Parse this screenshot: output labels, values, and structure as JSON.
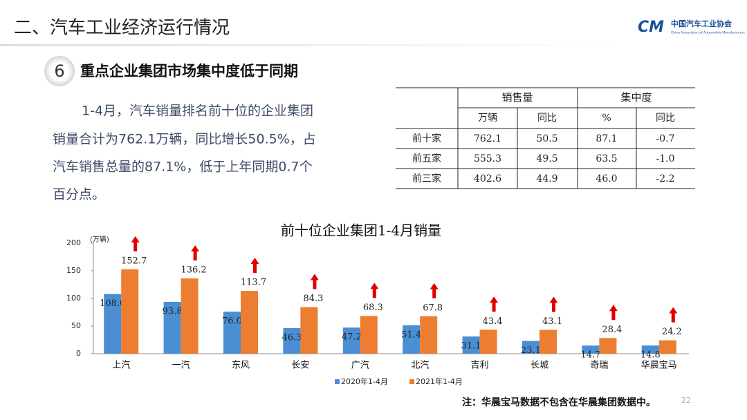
{
  "header": {
    "title": "二、汽车工业经济运行情况",
    "logo_mark": "CM",
    "logo_cn": "中国汽车工业协会",
    "logo_en": "China Association of Automobile Manufacturers"
  },
  "section": {
    "number": "6",
    "title": "重点企业集团市场集中度低于同期"
  },
  "paragraph": [
    "1-4月，汽车销量排名前十位的企业集团",
    "销量合计为762.1万辆，同比增长50.5%，占",
    "汽车销售总量的87.1%，低于上年同期0.7个",
    "百分点。"
  ],
  "table": {
    "group_headers": [
      "销售量",
      "集中度"
    ],
    "sub_headers": [
      "万辆",
      "同比",
      "%",
      "同比"
    ],
    "rows": [
      [
        "前十家",
        "762.1",
        "50.5",
        "87.1",
        "-0.7"
      ],
      [
        "前五家",
        "555.3",
        "49.5",
        "63.5",
        "-1.0"
      ],
      [
        "前三家",
        "402.6",
        "44.9",
        "46.0",
        "-2.2"
      ]
    ]
  },
  "chart_data": {
    "type": "bar",
    "title": "前十位企业集团1-4月销量",
    "ylabel": "(万辆)",
    "categories": [
      "上汽",
      "一汽",
      "东风",
      "长安",
      "广汽",
      "北汽",
      "吉利",
      "长城",
      "奇瑞",
      "华晨宝马"
    ],
    "series": [
      {
        "name": "2020年1-4月",
        "color": "#4a8fd4",
        "values": [
          108.0,
          93.8,
          76.0,
          46.3,
          47.2,
          51.4,
          31.1,
          23.1,
          14.7,
          14.8
        ],
        "value_labels": [
          "108.0",
          "93.8",
          "76.0",
          "46.3",
          "47.2",
          "51.4",
          "31.1",
          "23.1",
          "14.7",
          "14.8"
        ]
      },
      {
        "name": "2021年1-4月",
        "color": "#ed7d31",
        "values": [
          152.7,
          136.2,
          113.7,
          84.3,
          68.3,
          67.8,
          43.4,
          43.1,
          28.4,
          24.2
        ],
        "value_labels": [
          "152.7",
          "136.2",
          "113.7",
          "84.3",
          "68.3",
          "67.8",
          "43.4",
          "43.1",
          "28.4",
          "24.2"
        ]
      }
    ],
    "ylim": [
      0,
      200
    ],
    "yticks": [
      0,
      50,
      100,
      150,
      200
    ]
  },
  "note": "注：华晨宝马数据不包含在华晨集团数据中。",
  "page_number": "22"
}
